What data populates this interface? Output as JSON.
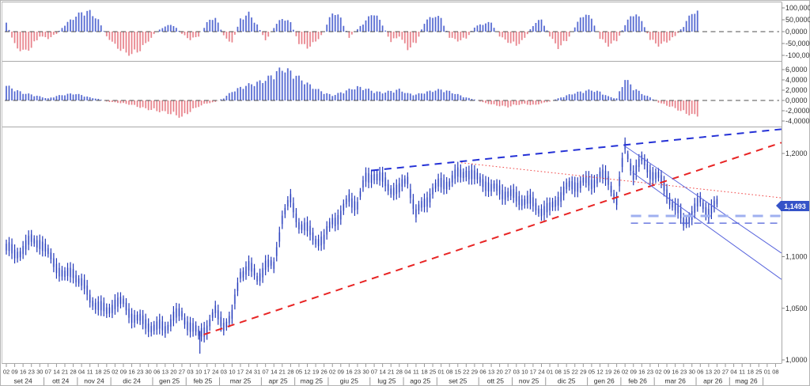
{
  "quote": {
    "last_label": "1,1493"
  },
  "chart_data": [
    {
      "id": "upper_cycle_oscillator",
      "type": "bar",
      "panel": "top",
      "legend_position": "none",
      "grid": false,
      "ylim": [
        -110,
        110
      ],
      "yticks": [
        {
          "v": 100,
          "label": "100,0000"
        },
        {
          "v": 50,
          "label": "50,0000"
        },
        {
          "v": 0,
          "label": "0,0000"
        },
        {
          "v": -50,
          "label": "-50,0000"
        },
        {
          "v": -100,
          "label": "-100,0000"
        }
      ],
      "zero_line_dashed": true,
      "weekly_values": [
        40,
        -60,
        -90,
        -70,
        -20,
        -30,
        -10,
        30,
        60,
        85,
        88,
        50,
        -20,
        -60,
        -90,
        -100,
        -80,
        -40,
        0,
        25,
        30,
        -10,
        -35,
        -20,
        40,
        65,
        -20,
        -50,
        55,
        80,
        30,
        -40,
        20,
        60,
        40,
        -50,
        -70,
        -45,
        0,
        88,
        60,
        -25,
        10,
        50,
        85,
        30,
        -45,
        -20,
        -75,
        -50,
        40,
        70,
        60,
        -25,
        -40,
        -30,
        20,
        35,
        40,
        -20,
        -45,
        -60,
        -30,
        30,
        55,
        -20,
        -70,
        -40,
        20,
        80,
        60,
        -30,
        -60,
        -40,
        30,
        85,
        50,
        -35,
        -60,
        -45,
        -20,
        25,
        85
      ]
    },
    {
      "id": "lower_macd_histogram",
      "type": "bar",
      "panel": "middle",
      "legend_position": "none",
      "grid": false,
      "ylim": [
        -5.2,
        7.4
      ],
      "yticks": [
        {
          "v": 6,
          "label": "6,0000"
        },
        {
          "v": 4,
          "label": "4,0000"
        },
        {
          "v": 2,
          "label": "2,0000"
        },
        {
          "v": 0,
          "label": "0,0000"
        },
        {
          "v": -2,
          "label": "-2,0000"
        },
        {
          "v": -4,
          "label": "-4,0000"
        }
      ],
      "zero_line_dashed": true,
      "weekly_values": [
        3.0,
        2.2,
        1.5,
        1.2,
        0.8,
        0.4,
        0.9,
        1.2,
        1.4,
        1.1,
        0.6,
        0.3,
        -0.2,
        -0.4,
        -0.6,
        -0.9,
        -1.4,
        -1.8,
        -2.1,
        -2.4,
        -2.8,
        -3.4,
        -2.2,
        -1.2,
        -0.6,
        -0.3,
        0.5,
        1.8,
        2.6,
        3.2,
        3.6,
        4.2,
        5.4,
        6.5,
        5.8,
        4.6,
        3.4,
        2.4,
        1.6,
        1.0,
        1.6,
        2.2,
        2.7,
        2.4,
        1.8,
        1.6,
        1.9,
        2.2,
        1.4,
        1.2,
        1.6,
        2.0,
        2.2,
        1.8,
        1.2,
        0.6,
        0.2,
        -0.4,
        -0.8,
        -1.1,
        -1.3,
        -0.9,
        -0.7,
        -1.0,
        -0.6,
        -0.2,
        0.4,
        1.0,
        1.5,
        1.9,
        2.1,
        1.7,
        0.8,
        0.4,
        4.4,
        2.6,
        1.4,
        0.6,
        -0.4,
        -1.0,
        -1.6,
        -2.4,
        -3.0
      ]
    },
    {
      "id": "price_candles",
      "type": "candlestick",
      "panel": "main",
      "grid": false,
      "ylim": [
        0.997,
        1.228
      ],
      "last_label": "1,1493",
      "last_value": 1.1493,
      "yticks": [
        {
          "v": 1.2,
          "label": "1,2000"
        },
        {
          "v": 1.1,
          "label": "1,1000"
        },
        {
          "v": 1.05,
          "label": "1,0500"
        },
        {
          "v": 1.0,
          "label": "1,0000"
        }
      ],
      "weekly_closes": [
        1.107,
        1.102,
        1.111,
        1.116,
        1.113,
        1.1,
        1.093,
        1.083,
        1.086,
        1.072,
        1.058,
        1.055,
        1.048,
        1.056,
        1.051,
        1.043,
        1.04,
        1.036,
        1.03,
        1.028,
        1.042,
        1.046,
        1.035,
        1.022,
        1.03,
        1.046,
        1.038,
        1.042,
        1.082,
        1.088,
        1.08,
        1.095,
        1.09,
        1.136,
        1.152,
        1.135,
        1.128,
        1.117,
        1.112,
        1.135,
        1.142,
        1.158,
        1.15,
        1.172,
        1.18,
        1.176,
        1.168,
        1.162,
        1.174,
        1.141,
        1.155,
        1.165,
        1.168,
        1.171,
        1.18,
        1.186,
        1.176,
        1.172,
        1.163,
        1.168,
        1.162,
        1.157,
        1.152,
        1.15,
        1.148,
        1.147,
        1.156,
        1.163,
        1.17,
        1.175,
        1.172,
        1.178,
        1.17,
        1.157,
        1.207,
        1.183,
        1.19,
        1.181,
        1.178,
        1.165,
        1.148,
        1.131,
        1.14,
        1.155,
        1.147,
        1.1493
      ],
      "spike_low": {
        "week": 23.15,
        "from": 1.028,
        "to": 1.006
      },
      "trendlines": [
        {
          "id": "rising-support-trendline",
          "style": "dashed",
          "color": "#e82424",
          "width": 2,
          "from": {
            "week": 23.6,
            "price": 1.0245
          },
          "to": {
            "week": 92.7,
            "price": 1.2105
          }
        },
        {
          "id": "upper-resistance-trendline",
          "style": "dashed",
          "color": "#2431d6",
          "width": 2,
          "from": {
            "week": 43.7,
            "price": 1.1835
          },
          "to": {
            "week": 92.7,
            "price": 1.2235
          }
        },
        {
          "id": "minor-resistance-dotted",
          "style": "dotted",
          "color": "#f04444",
          "width": 1,
          "from": {
            "week": 54.4,
            "price": 1.191
          },
          "to": {
            "week": 92.7,
            "price": 1.157
          }
        },
        {
          "id": "descending-channel-upper",
          "style": "solid",
          "color": "#5a66dd",
          "width": 1,
          "from": {
            "week": 74.0,
            "price": 1.207
          },
          "to": {
            "week": 92.7,
            "price": 1.1035
          }
        },
        {
          "id": "descending-channel-lower",
          "style": "solid",
          "color": "#5a66dd",
          "width": 1,
          "from": {
            "week": 74.9,
            "price": 1.1815
          },
          "to": {
            "week": 92.7,
            "price": 1.078
          }
        },
        {
          "id": "horizontal-support-light",
          "style": "longdash",
          "color": "#9fb0f0",
          "width": 3,
          "from": {
            "week": 74.7,
            "price": 1.1395
          },
          "to": {
            "week": 92.7,
            "price": 1.1395
          }
        },
        {
          "id": "horizontal-support-dark",
          "style": "dashed",
          "color": "#4d5fd8",
          "width": 1.3,
          "from": {
            "week": 74.7,
            "price": 1.1325
          },
          "to": {
            "week": 92.7,
            "price": 1.1325
          }
        }
      ]
    }
  ],
  "timeline": {
    "months": [
      {
        "label": "set 24",
        "days": [
          "02",
          "09",
          "16",
          "23",
          "30"
        ]
      },
      {
        "label": "ott 24",
        "days": [
          "07",
          "14",
          "21",
          "28"
        ]
      },
      {
        "label": "nov 24",
        "days": [
          "04",
          "11",
          "18",
          "25"
        ]
      },
      {
        "label": "dic 24",
        "days": [
          "02",
          "09",
          "16",
          "23",
          "30"
        ]
      },
      {
        "label": "gen 25",
        "days": [
          "06",
          "13",
          "20",
          "27"
        ]
      },
      {
        "label": "feb 25",
        "days": [
          "03",
          "10",
          "17",
          "24"
        ]
      },
      {
        "label": "mar 25",
        "days": [
          "03",
          "10",
          "17",
          "24",
          "31"
        ]
      },
      {
        "label": "apr 25",
        "days": [
          "07",
          "14",
          "21",
          "28"
        ]
      },
      {
        "label": "mag 25",
        "days": [
          "05",
          "12",
          "19",
          "26"
        ]
      },
      {
        "label": "giu 25",
        "days": [
          "02",
          "09",
          "16",
          "23",
          "30"
        ]
      },
      {
        "label": "lug 25",
        "days": [
          "07",
          "14",
          "21",
          "28"
        ]
      },
      {
        "label": "ago 25",
        "days": [
          "04",
          "11",
          "18",
          "25"
        ]
      },
      {
        "label": "set 25",
        "days": [
          "01",
          "08",
          "15",
          "22",
          "29"
        ]
      },
      {
        "label": "ott 25",
        "days": [
          "06",
          "13",
          "20",
          "27"
        ]
      },
      {
        "label": "nov 25",
        "days": [
          "03",
          "10",
          "17",
          "24"
        ]
      },
      {
        "label": "dic 25",
        "days": [
          "01",
          "08",
          "15",
          "22",
          "29"
        ]
      },
      {
        "label": "gen 26",
        "days": [
          "05",
          "12",
          "19",
          "26"
        ]
      },
      {
        "label": "feb 26",
        "days": [
          "02",
          "09",
          "16",
          "23"
        ]
      },
      {
        "label": "mar 26",
        "days": [
          "02",
          "09",
          "16",
          "23",
          "30"
        ]
      },
      {
        "label": "apr 26",
        "days": [
          "06",
          "13",
          "20",
          "27"
        ]
      },
      {
        "label": "mag 26",
        "days": [
          "04",
          "11",
          "18",
          "25"
        ]
      },
      {
        "label": "",
        "days": [
          "01",
          "08"
        ]
      }
    ]
  },
  "colors": {
    "hist_pos_light": "#7d8ddd",
    "hist_pos_dark": "#4157cc",
    "hist_neg_light": "#f0a3aa",
    "hist_neg_dark": "#e2737c",
    "price_stroke": "#2237b8",
    "price_body": "#b9c3ef",
    "zero_dash": "#3c3c3c",
    "frame": "#b4b4b4",
    "axis_text": "#2e2e2e",
    "badge_bg": "#3553c8",
    "badge_text": "#ffffff"
  }
}
